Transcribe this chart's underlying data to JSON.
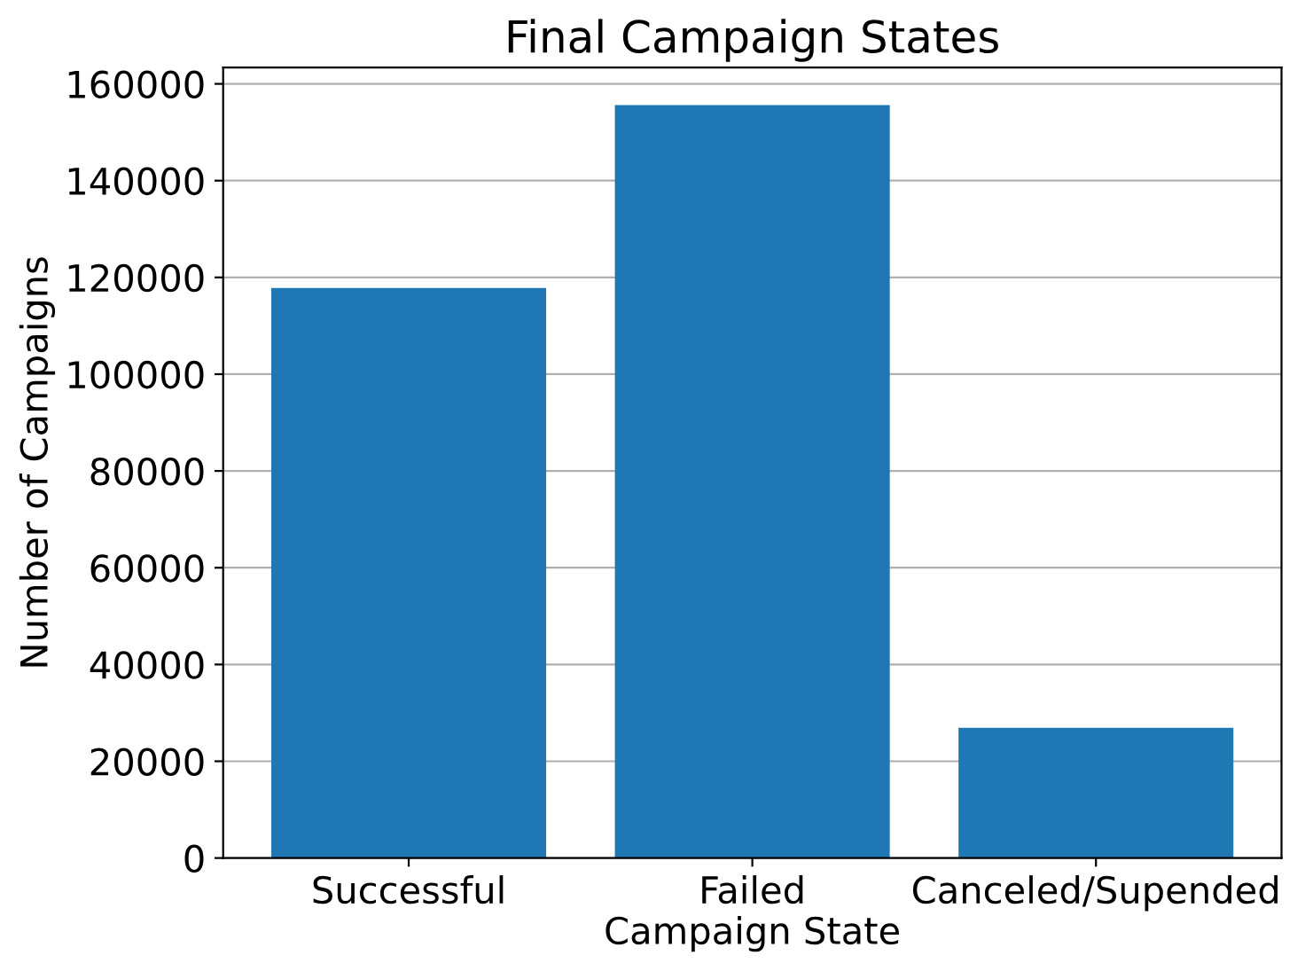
{
  "chart_data": {
    "type": "bar",
    "title": "Final Campaign States",
    "xlabel": "Campaign State",
    "ylabel": "Number of Campaigns",
    "categories": [
      "Successful",
      "Failed",
      "Canceled/Supended"
    ],
    "values": [
      117800,
      155600,
      26900
    ],
    "color": "#1f77b4",
    "ylim": [
      0,
      163400
    ],
    "yticks": [
      0,
      20000,
      40000,
      60000,
      80000,
      100000,
      120000,
      140000,
      160000
    ],
    "grid": "y"
  }
}
